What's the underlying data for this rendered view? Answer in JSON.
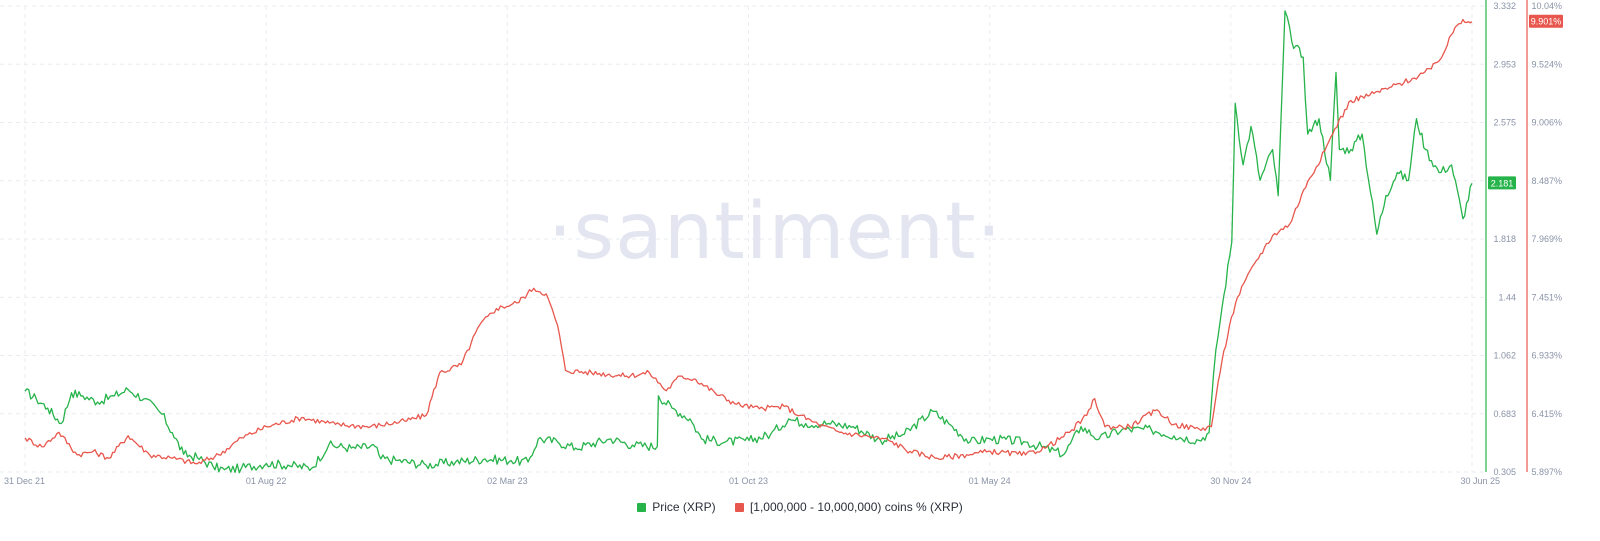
{
  "watermark": "·santiment·",
  "chart_data": {
    "type": "line",
    "x_ticks": [
      "31 Dec 21",
      "01 Aug 22",
      "02 Mar 23",
      "01 Oct 23",
      "01 May 24",
      "30 Nov 24",
      "30 Jun 25"
    ],
    "x_range": [
      "2021-12-31",
      "2025-06-30"
    ],
    "y_left_ticks": [
      "3.332",
      "2.953",
      "2.575",
      "2.181",
      "1.818",
      "1.44",
      "1.062",
      "0.683",
      "0.305"
    ],
    "y_left_range": [
      0.305,
      3.332
    ],
    "y_right_ticks": [
      "10.04%",
      "9.524%",
      "9.006%",
      "8.487%",
      "7.969%",
      "7.451%",
      "6.933%",
      "6.415%",
      "5.897%"
    ],
    "y_right_range": [
      5.897,
      10.04
    ],
    "grid": true,
    "legend_position": "bottom-center",
    "series": [
      {
        "name": "Price (XRP)",
        "color": "#26b34a",
        "axis": "left",
        "last_value_label": "2.181",
        "points": [
          [
            "2021-12-31",
            0.83
          ],
          [
            "2022-01-10",
            0.78
          ],
          [
            "2022-01-20",
            0.72
          ],
          [
            "2022-02-01",
            0.62
          ],
          [
            "2022-02-10",
            0.82
          ],
          [
            "2022-02-20",
            0.8
          ],
          [
            "2022-03-05",
            0.76
          ],
          [
            "2022-03-20",
            0.8
          ],
          [
            "2022-04-01",
            0.84
          ],
          [
            "2022-04-15",
            0.78
          ],
          [
            "2022-05-01",
            0.68
          ],
          [
            "2022-05-10",
            0.56
          ],
          [
            "2022-05-20",
            0.42
          ],
          [
            "2022-06-01",
            0.4
          ],
          [
            "2022-06-15",
            0.34
          ],
          [
            "2022-06-25",
            0.32
          ],
          [
            "2022-07-10",
            0.33
          ],
          [
            "2022-08-01",
            0.36
          ],
          [
            "2022-08-20",
            0.35
          ],
          [
            "2022-09-10",
            0.33
          ],
          [
            "2022-09-25",
            0.48
          ],
          [
            "2022-10-15",
            0.46
          ],
          [
            "2022-11-05",
            0.47
          ],
          [
            "2022-11-10",
            0.39
          ],
          [
            "2022-11-25",
            0.38
          ],
          [
            "2022-12-20",
            0.35
          ],
          [
            "2023-01-15",
            0.37
          ],
          [
            "2023-02-10",
            0.39
          ],
          [
            "2023-03-05",
            0.38
          ],
          [
            "2023-03-20",
            0.37
          ],
          [
            "2023-03-29",
            0.52
          ],
          [
            "2023-04-15",
            0.5
          ],
          [
            "2023-05-01",
            0.46
          ],
          [
            "2023-06-01",
            0.52
          ],
          [
            "2023-06-20",
            0.48
          ],
          [
            "2023-07-12",
            0.47
          ],
          [
            "2023-07-13",
            0.8
          ],
          [
            "2023-07-25",
            0.72
          ],
          [
            "2023-08-10",
            0.65
          ],
          [
            "2023-08-20",
            0.52
          ],
          [
            "2023-09-10",
            0.5
          ],
          [
            "2023-10-01",
            0.51
          ],
          [
            "2023-10-20",
            0.55
          ],
          [
            "2023-11-05",
            0.65
          ],
          [
            "2023-11-20",
            0.62
          ],
          [
            "2023-12-10",
            0.62
          ],
          [
            "2024-01-01",
            0.6
          ],
          [
            "2024-01-25",
            0.51
          ],
          [
            "2024-02-15",
            0.55
          ],
          [
            "2024-03-11",
            0.7
          ],
          [
            "2024-03-25",
            0.62
          ],
          [
            "2024-04-13",
            0.5
          ],
          [
            "2024-05-01",
            0.52
          ],
          [
            "2024-06-01",
            0.5
          ],
          [
            "2024-07-05",
            0.42
          ],
          [
            "2024-07-20",
            0.6
          ],
          [
            "2024-08-05",
            0.52
          ],
          [
            "2024-08-25",
            0.58
          ],
          [
            "2024-09-20",
            0.58
          ],
          [
            "2024-10-10",
            0.54
          ],
          [
            "2024-11-01",
            0.51
          ],
          [
            "2024-11-10",
            0.56
          ],
          [
            "2024-11-16",
            1.1
          ],
          [
            "2024-11-23",
            1.45
          ],
          [
            "2024-11-30",
            1.8
          ],
          [
            "2024-12-03",
            2.7
          ],
          [
            "2024-12-10",
            2.3
          ],
          [
            "2024-12-17",
            2.55
          ],
          [
            "2024-12-25",
            2.2
          ],
          [
            "2025-01-05",
            2.4
          ],
          [
            "2025-01-10",
            2.1
          ],
          [
            "2025-01-16",
            3.3
          ],
          [
            "2025-01-22",
            3.1
          ],
          [
            "2025-02-01",
            3.0
          ],
          [
            "2025-02-05",
            2.5
          ],
          [
            "2025-02-15",
            2.6
          ],
          [
            "2025-02-25",
            2.2
          ],
          [
            "2025-03-02",
            2.9
          ],
          [
            "2025-03-05",
            2.4
          ],
          [
            "2025-03-15",
            2.4
          ],
          [
            "2025-03-25",
            2.5
          ],
          [
            "2025-04-07",
            1.85
          ],
          [
            "2025-04-15",
            2.1
          ],
          [
            "2025-04-25",
            2.25
          ],
          [
            "2025-05-05",
            2.2
          ],
          [
            "2025-05-12",
            2.6
          ],
          [
            "2025-05-20",
            2.4
          ],
          [
            "2025-06-01",
            2.25
          ],
          [
            "2025-06-12",
            2.3
          ],
          [
            "2025-06-22",
            1.95
          ],
          [
            "2025-06-30",
            2.18
          ]
        ]
      },
      {
        "name": "[1,000,000 - 10,000,000) coins % (XRP)",
        "color": "#e8574d",
        "axis": "right",
        "last_value_label": "9.901%",
        "points": [
          [
            "2021-12-31",
            6.2
          ],
          [
            "2022-01-15",
            6.12
          ],
          [
            "2022-01-30",
            6.25
          ],
          [
            "2022-02-15",
            6.05
          ],
          [
            "2022-03-01",
            6.08
          ],
          [
            "2022-03-15",
            6.02
          ],
          [
            "2022-04-01",
            6.22
          ],
          [
            "2022-04-20",
            6.05
          ],
          [
            "2022-05-10",
            6.02
          ],
          [
            "2022-06-01",
            5.97
          ],
          [
            "2022-06-20",
            6.05
          ],
          [
            "2022-07-10",
            6.2
          ],
          [
            "2022-08-01",
            6.3
          ],
          [
            "2022-09-01",
            6.38
          ],
          [
            "2022-10-01",
            6.32
          ],
          [
            "2022-11-01",
            6.3
          ],
          [
            "2022-12-01",
            6.35
          ],
          [
            "2022-12-20",
            6.4
          ],
          [
            "2023-01-01",
            6.78
          ],
          [
            "2023-01-20",
            6.85
          ],
          [
            "2023-02-05",
            7.2
          ],
          [
            "2023-02-20",
            7.35
          ],
          [
            "2023-03-10",
            7.4
          ],
          [
            "2023-03-25",
            7.53
          ],
          [
            "2023-04-05",
            7.48
          ],
          [
            "2023-04-15",
            7.2
          ],
          [
            "2023-04-22",
            6.8
          ],
          [
            "2023-05-15",
            6.78
          ],
          [
            "2023-06-15",
            6.75
          ],
          [
            "2023-07-05",
            6.78
          ],
          [
            "2023-07-20",
            6.62
          ],
          [
            "2023-08-01",
            6.75
          ],
          [
            "2023-08-15",
            6.72
          ],
          [
            "2023-09-01",
            6.6
          ],
          [
            "2023-09-20",
            6.5
          ],
          [
            "2023-10-10",
            6.46
          ],
          [
            "2023-11-01",
            6.48
          ],
          [
            "2023-11-15",
            6.4
          ],
          [
            "2023-12-01",
            6.32
          ],
          [
            "2023-12-20",
            6.25
          ],
          [
            "2024-01-10",
            6.22
          ],
          [
            "2024-02-01",
            6.18
          ],
          [
            "2024-02-20",
            6.08
          ],
          [
            "2024-03-15",
            6.02
          ],
          [
            "2024-04-10",
            6.05
          ],
          [
            "2024-05-01",
            6.08
          ],
          [
            "2024-06-01",
            6.05
          ],
          [
            "2024-06-20",
            6.12
          ],
          [
            "2024-07-10",
            6.25
          ],
          [
            "2024-07-25",
            6.4
          ],
          [
            "2024-08-01",
            6.55
          ],
          [
            "2024-08-10",
            6.3
          ],
          [
            "2024-09-01",
            6.3
          ],
          [
            "2024-09-25",
            6.45
          ],
          [
            "2024-10-10",
            6.32
          ],
          [
            "2024-11-01",
            6.28
          ],
          [
            "2024-11-12",
            6.3
          ],
          [
            "2024-11-18",
            6.7
          ],
          [
            "2024-11-28",
            7.2
          ],
          [
            "2024-12-05",
            7.45
          ],
          [
            "2024-12-20",
            7.75
          ],
          [
            "2025-01-05",
            8.0
          ],
          [
            "2025-01-20",
            8.1
          ],
          [
            "2025-02-05",
            8.48
          ],
          [
            "2025-02-20",
            8.75
          ],
          [
            "2025-03-01",
            8.95
          ],
          [
            "2025-03-15",
            9.2
          ],
          [
            "2025-04-01",
            9.25
          ],
          [
            "2025-04-20",
            9.32
          ],
          [
            "2025-05-10",
            9.4
          ],
          [
            "2025-05-25",
            9.48
          ],
          [
            "2025-06-05",
            9.62
          ],
          [
            "2025-06-15",
            9.85
          ],
          [
            "2025-06-22",
            9.92
          ],
          [
            "2025-06-30",
            9.9
          ]
        ]
      }
    ]
  }
}
